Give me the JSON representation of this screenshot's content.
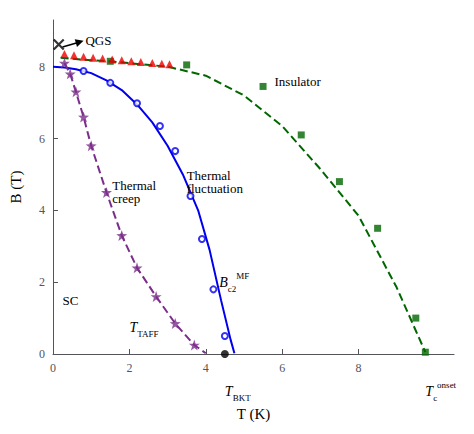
{
  "chart_data": {
    "type": "line",
    "xlabel": "T (K)",
    "ylabel": "B (T)",
    "xlim": [
      0,
      10.5
    ],
    "ylim": [
      0,
      9.3
    ],
    "xticks": [
      0,
      2,
      4,
      6,
      8
    ],
    "yticks": [
      0,
      2,
      4,
      6,
      8
    ],
    "grid": false,
    "series": [
      {
        "type": "line",
        "color": "#0000ee",
        "line_style": "solid",
        "marker": "none",
        "x": [
          0.0,
          0.3,
          0.6,
          1.0,
          1.4,
          1.8,
          2.2,
          2.6,
          3.0,
          3.4,
          3.8,
          4.1,
          4.4,
          4.65,
          4.75
        ],
        "values": [
          8.0,
          7.98,
          7.93,
          7.82,
          7.62,
          7.35,
          6.95,
          6.45,
          5.8,
          5.0,
          4.0,
          2.9,
          1.5,
          0.4,
          0.02
        ]
      },
      {
        "type": "scatter",
        "color": "#0000ee",
        "marker": "circle_open",
        "x": [
          0.8,
          1.5,
          2.2,
          2.8,
          3.2,
          3.6,
          3.9,
          4.2,
          4.5
        ],
        "values": [
          7.88,
          7.55,
          6.98,
          6.35,
          5.65,
          4.4,
          3.2,
          1.8,
          0.5
        ]
      },
      {
        "type": "line",
        "color": "#006600",
        "line_style": "dashed",
        "marker": "none",
        "x": [
          0.2,
          0.5,
          1.0,
          1.5,
          2.0,
          3.0,
          4.0,
          5.0,
          6.0,
          7.0,
          8.0,
          9.0,
          9.75
        ],
        "values": [
          8.25,
          8.22,
          8.18,
          8.15,
          8.1,
          8.0,
          7.75,
          7.2,
          6.35,
          5.15,
          3.85,
          1.85,
          0.05
        ]
      },
      {
        "type": "scatter",
        "color": "#006600",
        "marker": "square",
        "x": [
          1.5,
          3.5,
          5.5,
          6.5,
          7.5,
          8.5,
          9.5,
          9.75
        ],
        "values": [
          8.15,
          8.05,
          7.45,
          6.1,
          4.8,
          3.5,
          1.0,
          0.05
        ]
      },
      {
        "type": "line",
        "color": "#7b2d8b",
        "line_style": "dashed",
        "marker": "none",
        "x": [
          0.3,
          0.45,
          0.6,
          0.8,
          1.0,
          1.4,
          1.8,
          2.2,
          2.7,
          3.2,
          3.7,
          4.0
        ],
        "values": [
          8.1,
          7.8,
          7.3,
          6.6,
          5.8,
          4.5,
          3.3,
          2.4,
          1.6,
          0.85,
          0.25,
          0.02
        ]
      },
      {
        "type": "scatter",
        "color": "#7b2d8b",
        "marker": "star",
        "x": [
          0.3,
          0.45,
          0.6,
          0.8,
          1.0,
          1.4,
          1.8,
          2.2,
          2.7,
          3.2,
          3.7
        ],
        "values": [
          8.1,
          7.8,
          7.3,
          6.6,
          5.8,
          4.5,
          3.3,
          2.4,
          1.6,
          0.85,
          0.25
        ]
      },
      {
        "type": "scatter",
        "color": "#ee0000",
        "marker": "triangle",
        "x": [
          0.3,
          0.55,
          0.8,
          1.05,
          1.3,
          1.55,
          1.8,
          2.05,
          2.3,
          2.6,
          2.85,
          3.05
        ],
        "values": [
          8.35,
          8.32,
          8.28,
          8.25,
          8.23,
          8.2,
          8.18,
          8.15,
          8.13,
          8.1,
          8.08,
          8.07
        ]
      },
      {
        "type": "scatter",
        "color": "#000000",
        "marker": "x",
        "x": [
          0.15
        ],
        "values": [
          8.62
        ]
      },
      {
        "type": "scatter",
        "color": "#000000",
        "marker": "circle",
        "x": [
          4.5
        ],
        "values": [
          0.0
        ]
      }
    ],
    "annotations": [
      {
        "text": "QGS",
        "x": 0.85,
        "y": 8.72,
        "arrow_from": [
          0.25,
          8.55
        ],
        "arrow_to": [
          0.8,
          8.72
        ]
      },
      {
        "text": "Insulator",
        "x": 5.8,
        "y": 7.6
      },
      {
        "text": "Thermal\ncreep",
        "x": 1.55,
        "y": 4.5
      },
      {
        "text": "Thermal\nfluctuation",
        "x": 3.5,
        "y": 4.8
      },
      {
        "text": "SC",
        "x": 0.25,
        "y": 1.5
      },
      {
        "text": "T",
        "sub": "TAFF",
        "x": 2.0,
        "y": 0.75
      },
      {
        "text": "B",
        "sub": "c2",
        "sup": "MF",
        "x": 4.35,
        "y": 2.0
      },
      {
        "text": "T",
        "sub": "BKT",
        "x": 4.5,
        "y": -1.05
      },
      {
        "text": "T",
        "sub": "c",
        "sup": "onset",
        "x": 9.75,
        "y": -1.05
      }
    ]
  }
}
